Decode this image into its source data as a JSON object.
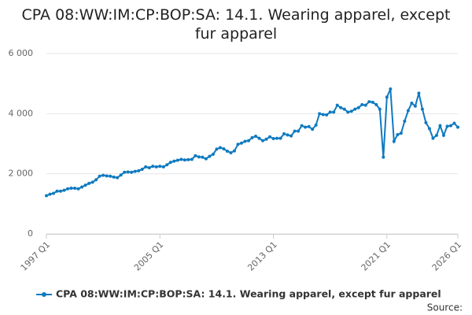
{
  "chart_data": {
    "type": "line",
    "title": "CPA 08:WW:IM:CP:BOP:SA: 14.1. Wearing apparel, except fur apparel",
    "source": "Source:",
    "categories": [
      "1997 Q1",
      null,
      null,
      null,
      null,
      null,
      null,
      null,
      null,
      null,
      null,
      null,
      null,
      null,
      null,
      null,
      null,
      null,
      null,
      null,
      null,
      null,
      null,
      null,
      null,
      null,
      null,
      null,
      null,
      null,
      null,
      null,
      "2005 Q1",
      null,
      null,
      null,
      null,
      null,
      null,
      null,
      null,
      null,
      null,
      null,
      null,
      null,
      null,
      null,
      null,
      null,
      null,
      null,
      null,
      null,
      null,
      null,
      null,
      null,
      null,
      null,
      null,
      null,
      null,
      null,
      "2013 Q1",
      null,
      null,
      null,
      null,
      null,
      null,
      null,
      null,
      null,
      null,
      null,
      null,
      null,
      null,
      null,
      null,
      null,
      null,
      null,
      null,
      null,
      null,
      null,
      null,
      null,
      null,
      null,
      null,
      null,
      null,
      null,
      "2021 Q1",
      null,
      null,
      null,
      null,
      null,
      null,
      null,
      null,
      null,
      null,
      null,
      null,
      null,
      null,
      null,
      null,
      null,
      null,
      null,
      "2026 Q1"
    ],
    "series": [
      {
        "name": "CPA 08:WW:IM:CP:BOP:SA: 14.1. Wearing apparel, except fur apparel",
        "color": "#0f7ac0",
        "values": [
          1270,
          1320,
          1350,
          1420,
          1420,
          1450,
          1500,
          1520,
          1520,
          1500,
          1560,
          1620,
          1680,
          1720,
          1800,
          1920,
          1950,
          1930,
          1920,
          1890,
          1870,
          1960,
          2050,
          2060,
          2050,
          2080,
          2100,
          2150,
          2230,
          2200,
          2250,
          2230,
          2250,
          2230,
          2300,
          2380,
          2420,
          2450,
          2480,
          2460,
          2470,
          2480,
          2600,
          2560,
          2550,
          2500,
          2580,
          2650,
          2820,
          2870,
          2830,
          2750,
          2700,
          2760,
          2980,
          3020,
          3080,
          3100,
          3200,
          3250,
          3180,
          3100,
          3150,
          3230,
          3170,
          3180,
          3180,
          3330,
          3290,
          3260,
          3420,
          3420,
          3600,
          3550,
          3570,
          3480,
          3620,
          4000,
          3970,
          3960,
          4050,
          4050,
          4280,
          4200,
          4150,
          4050,
          4080,
          4150,
          4200,
          4300,
          4280,
          4400,
          4380,
          4300,
          4150,
          2550,
          4550,
          4820,
          3080,
          3300,
          3350,
          3750,
          4100,
          4350,
          4250,
          4680,
          4150,
          3700,
          3500,
          3180,
          3280,
          3600,
          3280,
          3580,
          3600,
          3680,
          3550
        ]
      }
    ],
    "ylim": [
      0,
      6000
    ],
    "yticks": [
      0,
      {
        "value": 2000,
        "label": "2 000"
      },
      {
        "value": 4000,
        "label": "4 000"
      },
      {
        "value": 6000,
        "label": "6 000"
      }
    ],
    "grid": true,
    "legend": "bottom"
  }
}
